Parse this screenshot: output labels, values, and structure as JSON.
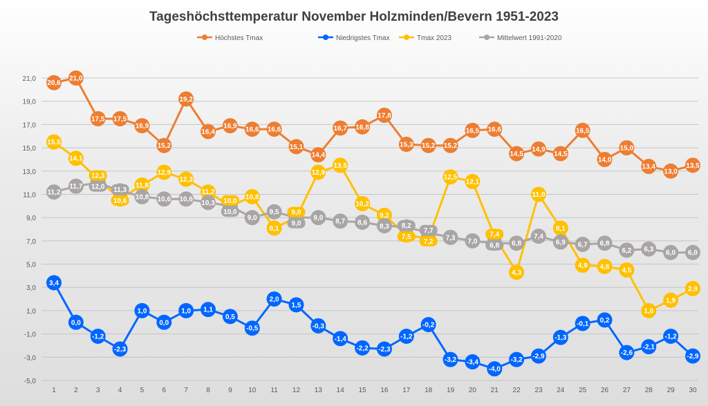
{
  "chart_data": {
    "type": "line",
    "title": "Tageshöchsttemperatur November Holzminden/Bevern 1951-2023",
    "xlabel": "",
    "ylabel": "",
    "x": [
      1,
      2,
      3,
      4,
      5,
      6,
      7,
      8,
      9,
      10,
      11,
      12,
      13,
      14,
      15,
      16,
      17,
      18,
      19,
      20,
      21,
      22,
      23,
      24,
      25,
      26,
      27,
      28,
      29,
      30
    ],
    "ylim": [
      -5,
      21
    ],
    "yticks": [
      "21,0",
      "19,0",
      "17,0",
      "15,0",
      "13,0",
      "11,0",
      "9,0",
      "7,0",
      "5,0",
      "3,0",
      "1,0",
      "-1,0",
      "-3,0",
      "-5,0"
    ],
    "grid": true,
    "legend_position": "top",
    "series": [
      {
        "name": "Höchstes Tmax",
        "color": "#ED7D31",
        "values": [
          20.6,
          21.0,
          17.5,
          17.5,
          16.9,
          15.2,
          19.2,
          16.4,
          16.9,
          16.6,
          16.6,
          15.1,
          14.4,
          16.7,
          16.8,
          17.8,
          15.3,
          15.2,
          15.2,
          16.5,
          16.6,
          14.5,
          14.9,
          14.5,
          16.5,
          14.0,
          15.0,
          13.4,
          13.0,
          13.5
        ]
      },
      {
        "name": "Niedrigstes Tmax",
        "color": "#0066FF",
        "values": [
          3.4,
          0.0,
          -1.2,
          -2.3,
          1.0,
          0.0,
          1.0,
          1.1,
          0.5,
          -0.5,
          2.0,
          1.5,
          -0.3,
          -1.4,
          -2.2,
          -2.3,
          -1.2,
          -0.2,
          -3.2,
          -3.4,
          -4.0,
          -3.2,
          -2.9,
          -1.3,
          -0.1,
          0.2,
          -2.6,
          -2.1,
          -1.2,
          -2.9
        ]
      },
      {
        "name": "Tmax 2023",
        "color": "#FFC000",
        "values": [
          15.5,
          14.1,
          12.3,
          10.6,
          11.8,
          12.9,
          12.3,
          11.2,
          10.0,
          10.8,
          8.1,
          9.0,
          12.9,
          13.5,
          10.2,
          9.2,
          7.5,
          7.2,
          12.5,
          12.1,
          7.4,
          4.3,
          11.0,
          8.1,
          4.9,
          4.8,
          4.5,
          1.0,
          1.9,
          2.9
        ]
      },
      {
        "name": "Mittelwert 1991-2020",
        "color": "#A9A5A5",
        "values": [
          11.2,
          11.7,
          12.0,
          11.3,
          10.8,
          10.6,
          10.6,
          10.3,
          10.0,
          9.0,
          9.5,
          9.0,
          9.0,
          8.7,
          8.6,
          8.3,
          8.2,
          7.7,
          7.3,
          7.0,
          6.8,
          6.8,
          7.4,
          6.9,
          6.7,
          6.8,
          6.2,
          6.3,
          6.0,
          6.0
        ]
      }
    ]
  }
}
